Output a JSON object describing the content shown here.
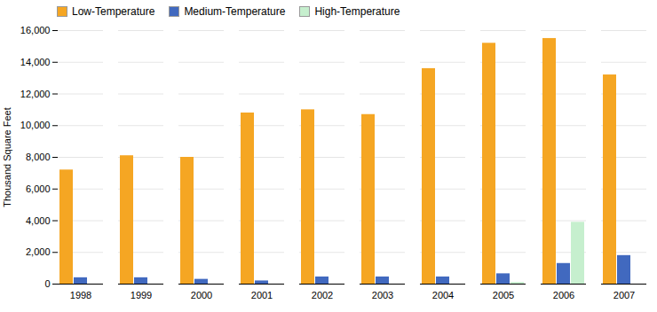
{
  "chart_data": {
    "type": "bar",
    "categories": [
      "1998",
      "1999",
      "2000",
      "2001",
      "2002",
      "2003",
      "2004",
      "2005",
      "2006",
      "2007"
    ],
    "series": [
      {
        "name": "Low-Temperature",
        "color": "#F5A623",
        "values": [
          7200,
          8100,
          8000,
          10800,
          11000,
          10700,
          13600,
          15200,
          15500,
          13200
        ]
      },
      {
        "name": "Medium-Temperature",
        "color": "#4169BF",
        "values": [
          400,
          400,
          300,
          200,
          450,
          450,
          450,
          650,
          1300,
          1800
        ]
      },
      {
        "name": "High-Temperature",
        "color": "#C6EFCE",
        "values": [
          0,
          0,
          0,
          0,
          0,
          0,
          0,
          100,
          3900,
          0
        ]
      }
    ],
    "ylabel": "Thousand Square Feet",
    "ylim": [
      0,
      16000
    ],
    "yticks": [
      0,
      {
        "value": 2000,
        "label": "2,000"
      },
      {
        "value": 4000,
        "label": "4,000"
      },
      {
        "value": 6000,
        "label": "6,000"
      },
      {
        "value": 8000,
        "label": "8,000"
      },
      {
        "value": 10000,
        "label": "10,000"
      },
      {
        "value": 12000,
        "label": "12,000"
      },
      {
        "value": 14000,
        "label": "14,000"
      },
      {
        "value": 16000,
        "label": "16,000"
      }
    ],
    "grid": true,
    "legend": "upper left"
  }
}
